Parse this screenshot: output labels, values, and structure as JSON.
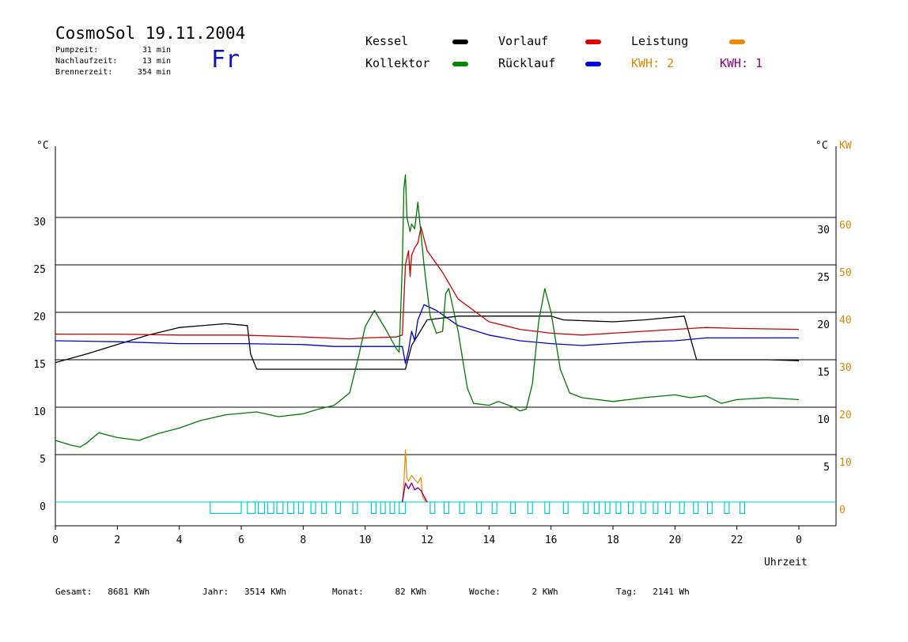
{
  "header": {
    "title": "CosmoSol 19.11.2004",
    "day": "Fr",
    "stats": [
      {
        "label": "Pumpzeit:",
        "value": "31 min"
      },
      {
        "label": "Nachlaufzeit:",
        "value": "13 min"
      },
      {
        "label": "Brennerzeit:",
        "value": "354 min"
      }
    ]
  },
  "legend": {
    "kessel": "Kessel",
    "vorlauf": "Vorlauf",
    "leistung": "Leistung",
    "kollektor": "Kollektor",
    "ruecklauf": "Rücklauf",
    "kwh2": "KWH: 2",
    "kwh1": "KWH: 1"
  },
  "footer": [
    {
      "label": "Gesamt:",
      "value": "8681 KWh"
    },
    {
      "label": "Jahr:",
      "value": "3514 KWh"
    },
    {
      "label": "Monat:",
      "value": "82 KWh"
    },
    {
      "label": "Woche:",
      "value": "2 KWh"
    },
    {
      "label": "Tag:",
      "value": "2141 Wh"
    }
  ],
  "colors": {
    "kessel": "#000000",
    "vorlauf": "#cc0000",
    "ruecklauf": "#0000cc",
    "kollektor": "#007700",
    "leistung": "#ee8800",
    "kwh1": "#880088",
    "pump": "#00cccc",
    "kw_axis": "#dd8800"
  },
  "chart_data": {
    "type": "line",
    "xlabel": "Uhrzeit",
    "ylabel_left": "°C",
    "ylabel_right_1": "°C",
    "ylabel_right_2": "KW",
    "xlim": [
      0,
      24
    ],
    "ylim": [
      -2.5,
      37.5
    ],
    "x_ticks": [
      "0",
      "2",
      "4",
      "6",
      "8",
      "10",
      "12",
      "14",
      "16",
      "18",
      "20",
      "22",
      "0"
    ],
    "x_tick_values": [
      0,
      2,
      4,
      6,
      8,
      10,
      12,
      14,
      16,
      18,
      20,
      22,
      24
    ],
    "y_ticks_left": [
      "0",
      "5",
      "10",
      "15",
      "20",
      "25",
      "30"
    ],
    "y_ticks_right_c": [
      "5",
      "10",
      "15",
      "20",
      "25",
      "30"
    ],
    "y_ticks_right_kw": [
      "0",
      "10",
      "20",
      "30",
      "40",
      "50",
      "60"
    ],
    "hlines": [
      0,
      5,
      10,
      15,
      20,
      25,
      30
    ],
    "series": [
      {
        "key": "kessel",
        "name": "Kessel",
        "points": [
          [
            0,
            14.7
          ],
          [
            1,
            15.6
          ],
          [
            2,
            16.6
          ],
          [
            3,
            17.6
          ],
          [
            4,
            18.4
          ],
          [
            5.5,
            18.8
          ],
          [
            6.2,
            18.6
          ],
          [
            6.3,
            15.6
          ],
          [
            6.5,
            14.0
          ],
          [
            8,
            14.0
          ],
          [
            9,
            14.0
          ],
          [
            11.2,
            14.0
          ],
          [
            11.3,
            14.0
          ],
          [
            11.5,
            16.5
          ],
          [
            12,
            19.2
          ],
          [
            13,
            19.6
          ],
          [
            15,
            19.6
          ],
          [
            16,
            19.6
          ],
          [
            16.4,
            19.2
          ],
          [
            18,
            19.0
          ],
          [
            19,
            19.2
          ],
          [
            20.3,
            19.6
          ],
          [
            20.7,
            15.0
          ],
          [
            22,
            15.0
          ],
          [
            23,
            15.0
          ],
          [
            24,
            14.9
          ]
        ]
      },
      {
        "key": "vorlauf",
        "name": "Vorlauf",
        "points": [
          [
            0,
            17.7
          ],
          [
            2,
            17.7
          ],
          [
            4,
            17.6
          ],
          [
            6,
            17.6
          ],
          [
            8,
            17.4
          ],
          [
            9.5,
            17.2
          ],
          [
            10,
            17.3
          ],
          [
            11,
            17.4
          ],
          [
            11.2,
            17.6
          ],
          [
            11.3,
            25.0
          ],
          [
            11.4,
            26.5
          ],
          [
            11.45,
            23.8
          ],
          [
            11.5,
            26.0
          ],
          [
            11.6,
            26.8
          ],
          [
            11.7,
            27.3
          ],
          [
            11.8,
            29.0
          ],
          [
            12,
            26.5
          ],
          [
            12.5,
            24.2
          ],
          [
            13,
            21.4
          ],
          [
            14,
            19.0
          ],
          [
            15,
            18.2
          ],
          [
            16,
            17.8
          ],
          [
            17,
            17.6
          ],
          [
            18,
            17.8
          ],
          [
            19,
            18.0
          ],
          [
            20,
            18.2
          ],
          [
            21,
            18.4
          ],
          [
            22,
            18.3
          ],
          [
            24,
            18.2
          ]
        ]
      },
      {
        "key": "ruecklauf",
        "name": "Rücklauf",
        "points": [
          [
            0,
            17.0
          ],
          [
            2,
            16.9
          ],
          [
            4,
            16.7
          ],
          [
            6,
            16.7
          ],
          [
            8,
            16.6
          ],
          [
            9,
            16.4
          ],
          [
            10.5,
            16.4
          ],
          [
            11.2,
            16.4
          ],
          [
            11.3,
            14.6
          ],
          [
            11.4,
            16.0
          ],
          [
            11.5,
            18.0
          ],
          [
            11.6,
            17.0
          ],
          [
            11.7,
            19.2
          ],
          [
            11.9,
            20.8
          ],
          [
            12.3,
            20.2
          ],
          [
            13,
            18.6
          ],
          [
            14,
            17.6
          ],
          [
            15,
            17.0
          ],
          [
            16,
            16.7
          ],
          [
            17,
            16.5
          ],
          [
            18,
            16.7
          ],
          [
            19,
            16.9
          ],
          [
            20,
            17.0
          ],
          [
            21,
            17.3
          ],
          [
            22,
            17.3
          ],
          [
            24,
            17.3
          ]
        ]
      },
      {
        "key": "kollektor",
        "name": "Kollektor",
        "points": [
          [
            0,
            6.5
          ],
          [
            0.5,
            6.0
          ],
          [
            0.8,
            5.8
          ],
          [
            1,
            6.2
          ],
          [
            1.4,
            7.3
          ],
          [
            2,
            6.8
          ],
          [
            2.7,
            6.5
          ],
          [
            3.3,
            7.2
          ],
          [
            4,
            7.8
          ],
          [
            4.7,
            8.6
          ],
          [
            5.5,
            9.2
          ],
          [
            6.5,
            9.5
          ],
          [
            7.2,
            9.0
          ],
          [
            8,
            9.3
          ],
          [
            8.5,
            9.8
          ],
          [
            9,
            10.2
          ],
          [
            9.5,
            11.5
          ],
          [
            9.8,
            15.5
          ],
          [
            10,
            18.5
          ],
          [
            10.3,
            20.2
          ],
          [
            10.7,
            18.0
          ],
          [
            11,
            16.2
          ],
          [
            11.1,
            15.8
          ],
          [
            11.2,
            25.0
          ],
          [
            11.25,
            33.0
          ],
          [
            11.3,
            34.5
          ],
          [
            11.35,
            30.0
          ],
          [
            11.45,
            28.5
          ],
          [
            11.5,
            29.3
          ],
          [
            11.6,
            28.8
          ],
          [
            11.7,
            31.6
          ],
          [
            11.9,
            25.0
          ],
          [
            12.1,
            19.6
          ],
          [
            12.3,
            17.8
          ],
          [
            12.5,
            18.0
          ],
          [
            12.6,
            22.0
          ],
          [
            12.7,
            22.5
          ],
          [
            13,
            18.0
          ],
          [
            13.3,
            12.0
          ],
          [
            13.5,
            10.4
          ],
          [
            14,
            10.2
          ],
          [
            14.3,
            10.6
          ],
          [
            14.8,
            10.0
          ],
          [
            15,
            9.6
          ],
          [
            15.2,
            9.8
          ],
          [
            15.4,
            12.5
          ],
          [
            15.6,
            19.0
          ],
          [
            15.8,
            22.5
          ],
          [
            16,
            20.0
          ],
          [
            16.3,
            14.0
          ],
          [
            16.6,
            11.5
          ],
          [
            17,
            11.0
          ],
          [
            17.5,
            10.8
          ],
          [
            18,
            10.6
          ],
          [
            19,
            11.0
          ],
          [
            20,
            11.3
          ],
          [
            20.5,
            11.0
          ],
          [
            21,
            11.2
          ],
          [
            21.5,
            10.4
          ],
          [
            22,
            10.8
          ],
          [
            23,
            11.0
          ],
          [
            24,
            10.8
          ]
        ]
      },
      {
        "key": "leistung",
        "name": "Leistung",
        "points": [
          [
            11.2,
            0
          ],
          [
            11.25,
            2.0
          ],
          [
            11.3,
            5.5
          ],
          [
            11.35,
            2.5
          ],
          [
            11.4,
            2.2
          ],
          [
            11.5,
            2.8
          ],
          [
            11.6,
            2.4
          ],
          [
            11.7,
            2.0
          ],
          [
            11.8,
            2.6
          ],
          [
            11.85,
            0.6
          ],
          [
            11.95,
            0
          ]
        ]
      },
      {
        "key": "kwh1",
        "name": "KWH: 1",
        "points": [
          [
            11.2,
            0
          ],
          [
            11.3,
            2.0
          ],
          [
            11.4,
            1.4
          ],
          [
            11.5,
            2.0
          ],
          [
            11.6,
            1.3
          ],
          [
            11.7,
            1.5
          ],
          [
            11.8,
            1.2
          ],
          [
            11.9,
            0.6
          ],
          [
            12,
            0
          ]
        ]
      }
    ],
    "pump_pulses": [
      [
        5.0,
        6.0
      ],
      [
        6.2,
        6.45
      ],
      [
        6.55,
        6.75
      ],
      [
        6.85,
        7.05
      ],
      [
        7.15,
        7.35
      ],
      [
        7.5,
        7.7
      ],
      [
        7.85,
        8.0
      ],
      [
        8.25,
        8.4
      ],
      [
        8.6,
        8.75
      ],
      [
        9.05,
        9.2
      ],
      [
        9.6,
        9.75
      ],
      [
        10.2,
        10.35
      ],
      [
        10.5,
        10.65
      ],
      [
        10.8,
        10.95
      ],
      [
        11.1,
        11.3
      ],
      [
        12.1,
        12.25
      ],
      [
        12.55,
        12.7
      ],
      [
        13.05,
        13.2
      ],
      [
        13.6,
        13.75
      ],
      [
        14.1,
        14.25
      ],
      [
        14.7,
        14.85
      ],
      [
        15.25,
        15.4
      ],
      [
        15.8,
        15.95
      ],
      [
        16.4,
        16.55
      ],
      [
        17.05,
        17.2
      ],
      [
        17.4,
        17.55
      ],
      [
        17.75,
        17.9
      ],
      [
        18.1,
        18.25
      ],
      [
        18.5,
        18.65
      ],
      [
        18.9,
        19.05
      ],
      [
        19.3,
        19.45
      ],
      [
        19.7,
        19.85
      ],
      [
        20.15,
        20.3
      ],
      [
        20.6,
        20.75
      ],
      [
        21.05,
        21.2
      ],
      [
        21.6,
        21.75
      ],
      [
        22.1,
        22.25
      ]
    ]
  }
}
